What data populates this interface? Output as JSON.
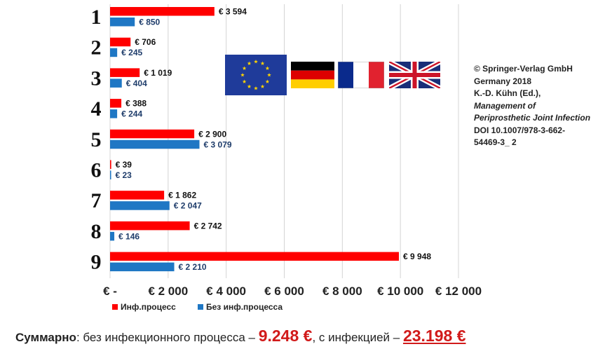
{
  "chart_data": {
    "type": "bar",
    "orientation": "horizontal",
    "categories": [
      "1",
      "2",
      "3",
      "4",
      "5",
      "6",
      "7",
      "8",
      "9"
    ],
    "series": [
      {
        "name": "Инф.процесс",
        "color": "#ff0000",
        "values": [
          3594,
          706,
          1019,
          388,
          2900,
          39,
          1862,
          2742,
          9948
        ],
        "labels": [
          "€ 3 594",
          "€ 706",
          "€ 1 019",
          "€ 388",
          "€ 2 900",
          "€ 39",
          "€ 1 862",
          "€ 2 742",
          "€ 9 948"
        ],
        "label_color": "#111111"
      },
      {
        "name": "Без инф.процесса",
        "color": "#1f77c4",
        "values": [
          850,
          245,
          404,
          244,
          3079,
          23,
          2047,
          146,
          2210
        ],
        "labels": [
          "€ 850",
          "€ 245",
          "€ 404",
          "€ 244",
          "€ 3 079",
          "€ 23",
          "€ 2 047",
          "€ 146",
          "€ 2 210"
        ],
        "label_color": "#1f3d6b"
      }
    ],
    "xlim": [
      0,
      12000
    ],
    "xticks": [
      0,
      2000,
      4000,
      6000,
      8000,
      10000,
      12000
    ],
    "xtick_labels": [
      "€ -",
      "€ 2 000",
      "€ 4 000",
      "€ 6 000",
      "€ 8 000",
      "€ 10 000",
      "€ 12 000"
    ],
    "grid": true,
    "legend_position": "bottom-left",
    "title": "",
    "xlabel": "",
    "ylabel": ""
  },
  "credit": {
    "line1": "© Springer-Verlag GmbH",
    "line2": "Germany 2018",
    "line3": "K.-D. Kühn (Ed.),",
    "line4": "Management of",
    "line5": "Periprosthetic Joint Infection",
    "line6": "DOI 10.1007/978-3-662-",
    "line7": "54469-3_ 2"
  },
  "flags": [
    "eu-flag",
    "germany-flag",
    "france-flag",
    "uk-flag"
  ],
  "summary": {
    "label": "Суммарно",
    "text1": ": без инфекционного процесса – ",
    "value1": "9.248 €",
    "text2": ", с инфекцией  – ",
    "value2": "23.198 €"
  }
}
